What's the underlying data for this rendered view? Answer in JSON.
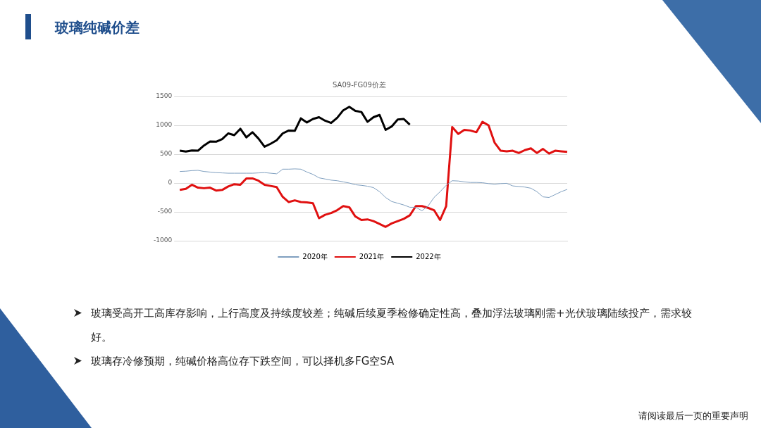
{
  "chart_data": {
    "type": "line",
    "title": "SA09-FG09价差",
    "categories": [
      null,
      null,
      null,
      null,
      null,
      null,
      null,
      null,
      null,
      null,
      null,
      null,
      null,
      null,
      null,
      null,
      null,
      null,
      null,
      null,
      null,
      null,
      null,
      null,
      null,
      null,
      null,
      null,
      null,
      null,
      null,
      null,
      null,
      null,
      null,
      null,
      null,
      null,
      null,
      null,
      null,
      null,
      null,
      null,
      null,
      null,
      null,
      null,
      null,
      null,
      null,
      null,
      null,
      null,
      null,
      null,
      null,
      null,
      null,
      null,
      null,
      null,
      null,
      null,
      null
    ],
    "series": [
      {
        "name": "2020年",
        "color": "#7f9fbf",
        "values": [
          200,
          205,
          215,
          220,
          200,
          190,
          180,
          175,
          170,
          170,
          170,
          170,
          170,
          175,
          180,
          170,
          160,
          240,
          240,
          245,
          240,
          190,
          150,
          90,
          70,
          50,
          40,
          20,
          0,
          -30,
          -40,
          -55,
          -80,
          -150,
          -250,
          -320,
          -350,
          -380,
          -420,
          -420,
          -480,
          -400,
          -250,
          -150,
          -40,
          40,
          35,
          20,
          10,
          10,
          5,
          -10,
          -20,
          -10,
          -5,
          -50,
          -60,
          -70,
          -90,
          -150,
          -240,
          -250,
          -200,
          -150,
          -110
        ]
      },
      {
        "name": "2021年",
        "color": "#e01010",
        "values": [
          -120,
          -100,
          -30,
          -80,
          -90,
          -80,
          -130,
          -120,
          -60,
          -20,
          -30,
          80,
          80,
          40,
          -30,
          -50,
          -70,
          -240,
          -330,
          -300,
          -330,
          -335,
          -350,
          -610,
          -550,
          -520,
          -470,
          -400,
          -420,
          -580,
          -640,
          -630,
          -660,
          -710,
          -760,
          -700,
          -660,
          -620,
          -560,
          -400,
          -400,
          -430,
          -470,
          -640,
          -400,
          970,
          850,
          920,
          910,
          880,
          1060,
          1000,
          700,
          560,
          550,
          560,
          520,
          570,
          600,
          520,
          590,
          510,
          560,
          550,
          540
        ]
      },
      {
        "name": "2022年",
        "color": "#000000",
        "values": [
          560,
          545,
          565,
          560,
          650,
          720,
          715,
          760,
          860,
          830,
          940,
          790,
          880,
          770,
          630,
          680,
          740,
          860,
          910,
          905,
          1120,
          1050,
          1110,
          1140,
          1080,
          1040,
          1130,
          1260,
          1320,
          1250,
          1230,
          1060,
          1140,
          1180,
          920,
          980,
          1100,
          1110,
          1010,
          null,
          null,
          null,
          null,
          null,
          null,
          null,
          null,
          null,
          null,
          null,
          null,
          null,
          null,
          null,
          null,
          null,
          null,
          null,
          null,
          null,
          null,
          null,
          null,
          null,
          null
        ]
      }
    ],
    "ylim": [
      -1000,
      1500
    ],
    "yticks": [
      -1000,
      -500,
      0,
      500,
      1000,
      1500
    ],
    "grid": "y",
    "legend": "bottom",
    "marker": "none",
    "annotations": [
      "玻璃纯碱价差",
      "玻璃受高开工高库存影响，上行高度及持续度较差；纯碱后续夏季检修确定性高，叠加浮法玻璃刚需+光伏玻璃陆续投产，需求较好。",
      "玻璃存冷修预期，纯碱价格高位存下跌空间，可以择机多FG空SA",
      "请阅读最后一页的重要声明"
    ]
  }
}
